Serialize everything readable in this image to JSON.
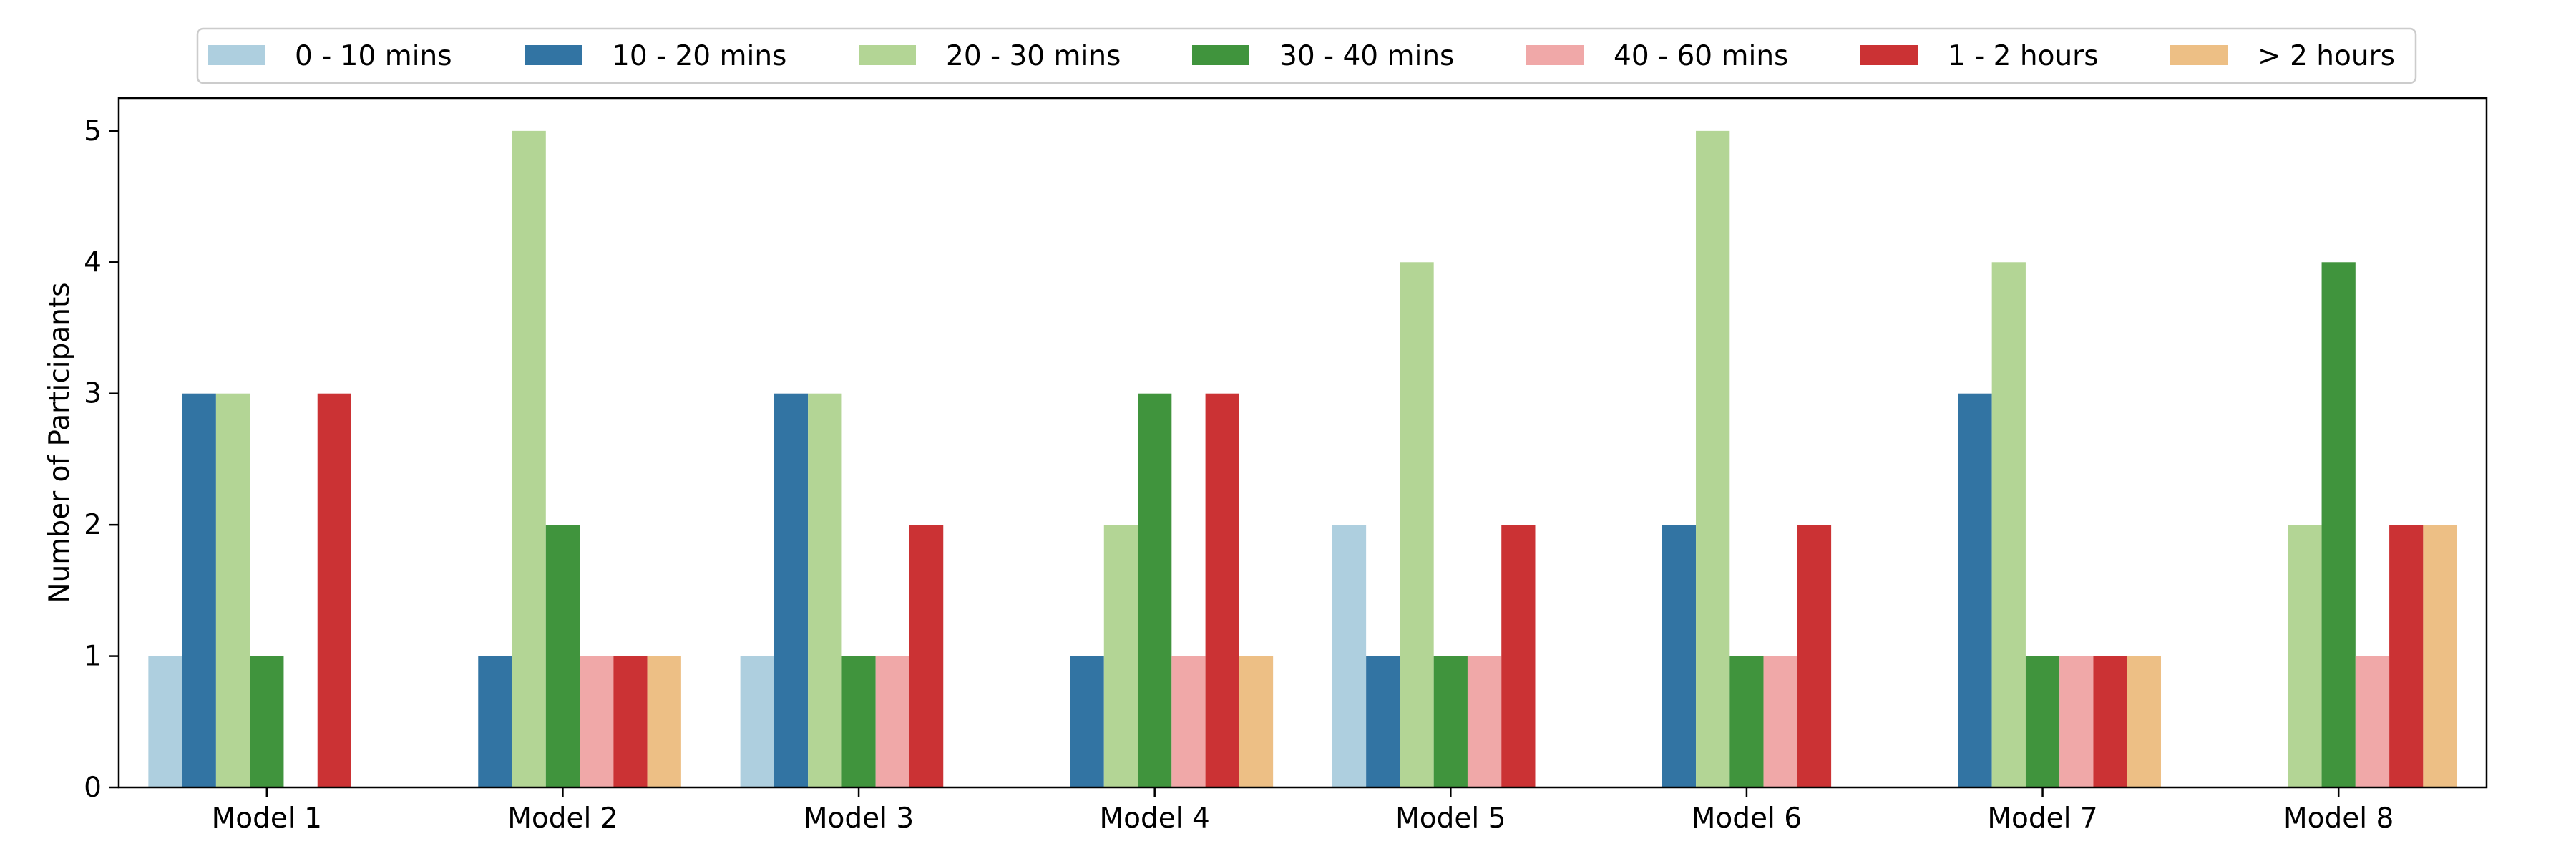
{
  "chart_data": {
    "type": "bar",
    "title": "",
    "xlabel": "",
    "ylabel": "Number of Participants",
    "ylim": [
      0,
      5.25
    ],
    "yticks": [
      0,
      1,
      2,
      3,
      4,
      5
    ],
    "grid": false,
    "legend_position": "top-center",
    "categories": [
      "Model 1",
      "Model 2",
      "Model 3",
      "Model 4",
      "Model 5",
      "Model 6",
      "Model 7",
      "Model 8"
    ],
    "series": [
      {
        "name": "0 - 10 mins",
        "color": "#aecfdf",
        "values": [
          1,
          0,
          1,
          0,
          2,
          0,
          0,
          0
        ]
      },
      {
        "name": "10 - 20 mins",
        "color": "#3274a3",
        "values": [
          3,
          1,
          3,
          1,
          1,
          2,
          3,
          0
        ]
      },
      {
        "name": "20 - 30 mins",
        "color": "#b3d595",
        "values": [
          3,
          5,
          3,
          2,
          4,
          5,
          4,
          2
        ]
      },
      {
        "name": "30 - 40 mins",
        "color": "#40943d",
        "values": [
          1,
          2,
          1,
          3,
          1,
          1,
          1,
          4
        ]
      },
      {
        "name": "40 - 60 mins",
        "color": "#f0a8a8",
        "values": [
          0,
          1,
          1,
          1,
          1,
          1,
          1,
          1
        ]
      },
      {
        "name": "1 - 2 hours",
        "color": "#cb3234",
        "values": [
          3,
          1,
          2,
          3,
          2,
          2,
          1,
          2
        ]
      },
      {
        "name": "> 2 hours",
        "color": "#edbf85",
        "values": [
          0,
          1,
          0,
          1,
          0,
          0,
          1,
          2
        ]
      }
    ]
  }
}
